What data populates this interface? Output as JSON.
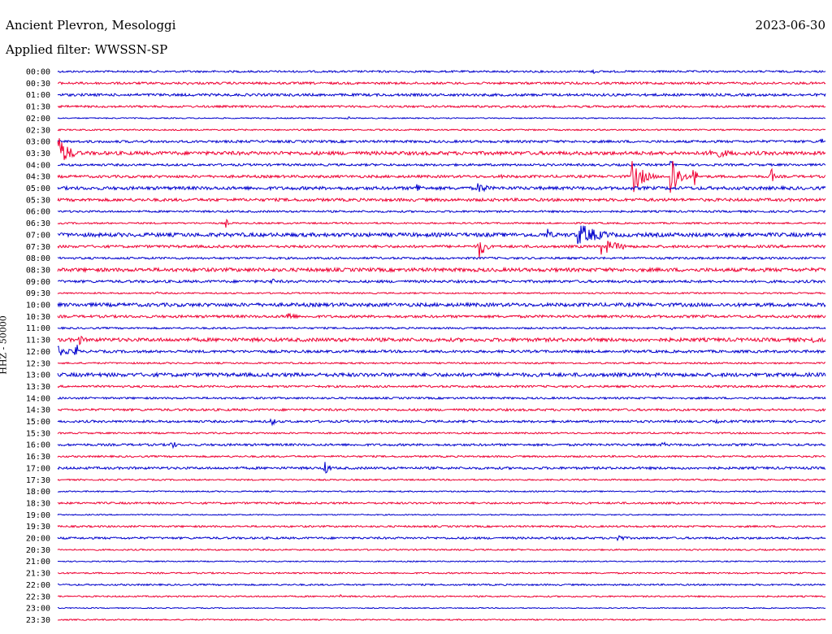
{
  "header": {
    "station": "Ancient Plevron, Mesologgi",
    "date": "2023-06-30",
    "filter": "Applied filter: WWSSN-SP"
  },
  "chart_data": {
    "type": "line",
    "title": "Ancient Plevron, Mesologgi",
    "ylabel": "HHZ - 50000",
    "trace_colors": [
      "#0000cc",
      "#ee0033"
    ],
    "row_labels": [
      "00:00",
      "00:30",
      "01:00",
      "01:30",
      "02:00",
      "02:30",
      "03:00",
      "03:30",
      "04:00",
      "04:30",
      "05:00",
      "05:30",
      "06:00",
      "06:30",
      "07:00",
      "07:30",
      "08:00",
      "08:30",
      "09:00",
      "09:30",
      "10:00",
      "10:30",
      "11:00",
      "11:30",
      "12:00",
      "12:30",
      "13:00",
      "13:30",
      "14:00",
      "14:30",
      "15:00",
      "15:30",
      "16:00",
      "16:30",
      "17:00",
      "17:30",
      "18:00",
      "18:30",
      "19:00",
      "19:30",
      "20:00",
      "20:30",
      "21:00",
      "21:30",
      "22:00",
      "22:30",
      "23:00",
      "23:30"
    ],
    "row_noise": [
      1.2,
      1.4,
      1.6,
      1.3,
      0.7,
      0.9,
      1.5,
      2.2,
      1.4,
      1.6,
      2.0,
      1.8,
      1.2,
      1.0,
      2.4,
      1.6,
      1.3,
      2.2,
      1.6,
      0.9,
      2.2,
      1.6,
      1.1,
      2.2,
      1.6,
      1.0,
      2.3,
      1.3,
      1.2,
      1.4,
      1.4,
      1.0,
      1.4,
      1.1,
      1.5,
      0.9,
      0.8,
      1.2,
      0.7,
      1.1,
      1.3,
      0.9,
      0.7,
      0.9,
      1.0,
      0.9,
      0.6,
      0.8
    ],
    "events": [
      {
        "row": 0,
        "x": 0.7,
        "amp": 3,
        "dur": 0.004
      },
      {
        "row": 1,
        "x": 0.17,
        "amp": 2,
        "dur": 0.025
      },
      {
        "row": 3,
        "x": 0.58,
        "amp": 2,
        "dur": 0.004
      },
      {
        "row": 4,
        "x": 0.38,
        "amp": 2,
        "dur": 0.004
      },
      {
        "row": 6,
        "x": 0.995,
        "amp": 6,
        "dur": 0.004
      },
      {
        "row": 7,
        "x": 0.0,
        "amp": 22,
        "dur": 0.03
      },
      {
        "row": 7,
        "x": 0.85,
        "amp": 7,
        "dur": 0.07
      },
      {
        "row": 7,
        "x": 0.16,
        "amp": 2,
        "dur": 0.03
      },
      {
        "row": 8,
        "x": 0.8,
        "amp": 5,
        "dur": 0.004
      },
      {
        "row": 9,
        "x": 0.75,
        "amp": 20,
        "dur": 0.03
      },
      {
        "row": 9,
        "x": 0.8,
        "amp": 30,
        "dur": 0.02
      },
      {
        "row": 9,
        "x": 0.83,
        "amp": 14,
        "dur": 0.006
      },
      {
        "row": 9,
        "x": 0.93,
        "amp": 12,
        "dur": 0.006
      },
      {
        "row": 9,
        "x": 0.58,
        "amp": 3,
        "dur": 0.004
      },
      {
        "row": 10,
        "x": 0.47,
        "amp": 7,
        "dur": 0.012
      },
      {
        "row": 10,
        "x": 0.55,
        "amp": 7,
        "dur": 0.025
      },
      {
        "row": 13,
        "x": 0.22,
        "amp": 6,
        "dur": 0.004
      },
      {
        "row": 14,
        "x": 0.64,
        "amp": 8,
        "dur": 0.01
      },
      {
        "row": 14,
        "x": 0.68,
        "amp": 14,
        "dur": 0.06
      },
      {
        "row": 15,
        "x": 0.55,
        "amp": 16,
        "dur": 0.015
      },
      {
        "row": 15,
        "x": 0.71,
        "amp": 10,
        "dur": 0.05
      },
      {
        "row": 18,
        "x": 0.28,
        "amp": 4,
        "dur": 0.01
      },
      {
        "row": 19,
        "x": 0.13,
        "amp": 2,
        "dur": 0.004
      },
      {
        "row": 21,
        "x": 0.3,
        "amp": 7,
        "dur": 0.02
      },
      {
        "row": 22,
        "x": 0.8,
        "amp": 3,
        "dur": 0.004
      },
      {
        "row": 23,
        "x": 0.03,
        "amp": 6,
        "dur": 0.01
      },
      {
        "row": 23,
        "x": 0.98,
        "amp": 6,
        "dur": 0.02
      },
      {
        "row": 24,
        "x": 0.0,
        "amp": 8,
        "dur": 0.03
      },
      {
        "row": 24,
        "x": 0.025,
        "amp": 12,
        "dur": 0.004
      },
      {
        "row": 26,
        "x": 0.37,
        "amp": 3,
        "dur": 0.01
      },
      {
        "row": 27,
        "x": 0.78,
        "amp": 2,
        "dur": 0.03
      },
      {
        "row": 30,
        "x": 0.28,
        "amp": 5,
        "dur": 0.01
      },
      {
        "row": 30,
        "x": 0.86,
        "amp": 2,
        "dur": 0.03
      },
      {
        "row": 32,
        "x": 0.15,
        "amp": 5,
        "dur": 0.012
      },
      {
        "row": 32,
        "x": 0.79,
        "amp": 4,
        "dur": 0.004
      },
      {
        "row": 34,
        "x": 0.35,
        "amp": 8,
        "dur": 0.012
      },
      {
        "row": 37,
        "x": 0.29,
        "amp": 2,
        "dur": 0.01
      },
      {
        "row": 37,
        "x": 0.73,
        "amp": 2,
        "dur": 0.004
      },
      {
        "row": 40,
        "x": 0.73,
        "amp": 5,
        "dur": 0.02
      },
      {
        "row": 45,
        "x": 0.37,
        "amp": 2,
        "dur": 0.01
      }
    ]
  }
}
